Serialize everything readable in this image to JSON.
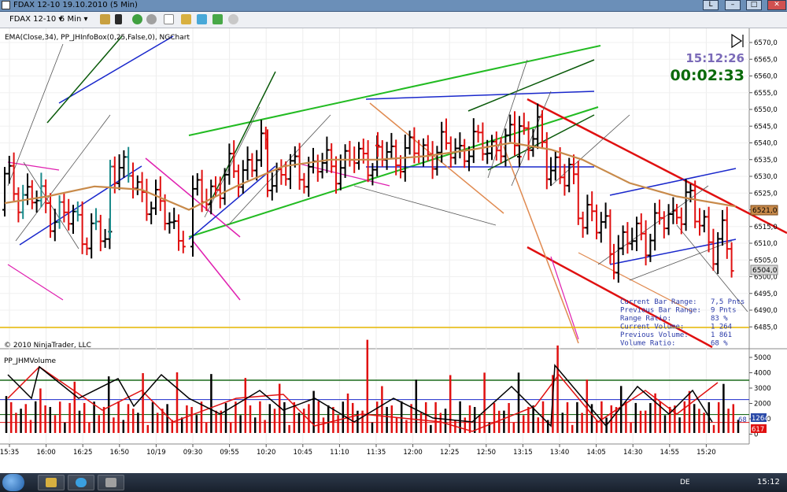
{
  "window": {
    "title": "FDAX 12-10  19.10.2010 (5 Min)",
    "button_l": "L",
    "button_min": "–",
    "button_max": "□",
    "button_close": "✕"
  },
  "toolbar": {
    "instrument": "FDAX 12-10",
    "interval": "5 Min",
    "dropdown_arrow": "▾"
  },
  "chart": {
    "indicators_label": "EMA(Close,34), PP_JHInfoBox(0,25,False,0), NGChart",
    "time_text": "15:12:26",
    "countdown_text": "00:02:33",
    "copyright": "© 2010 NinjaTrader, LLC",
    "volume_panel_label": "PP_JHMVolume",
    "price_axis_labels": [
      "6570,0",
      "6565,0",
      "6560,0",
      "6555,0",
      "6550,0",
      "6545,0",
      "6540,0",
      "6535,0",
      "6530,0",
      "6525,0",
      "6520,0",
      "6515,0",
      "6510,0",
      "6505,0",
      "6500,0",
      "6495,0",
      "6490,0",
      "6485,0"
    ],
    "last_price_tag": "6521,0",
    "secondary_price_tag": "6504,0",
    "volume_axis_labels": [
      "5000",
      "4000",
      "3000",
      "2000",
      "1000",
      "0"
    ],
    "volume_tag_current": "1264",
    "volume_tag_previous": "617",
    "volume_tag_small": "68",
    "time_axis_labels": [
      "15:35",
      "16:00",
      "16:25",
      "16:50",
      "10/19",
      "09:30",
      "09:55",
      "10:20",
      "10:45",
      "11:10",
      "11:35",
      "12:00",
      "12:25",
      "12:50",
      "13:15",
      "13:40",
      "14:05",
      "14:30",
      "14:55",
      "15:20"
    ],
    "infobox": [
      {
        "label": "Current Bar Range:",
        "value": "7,5 Pnts"
      },
      {
        "label": "Previous Bar Range:",
        "value": "9 Pnts"
      },
      {
        "label": "Range Ratio:",
        "value": "83 %"
      },
      {
        "label": "Current Volume:",
        "value": "1 264"
      },
      {
        "label": "Previous Volume:",
        "value": "1 861"
      },
      {
        "label": "Volume Ratio:",
        "value": "68 %"
      }
    ],
    "colors": {
      "up_bar": "#000000",
      "down_bar": "#e01010",
      "teal_bar": "#1a8a8a",
      "ema": "#c88a4a",
      "green_channel": "#22bb22",
      "dark_green": "#0a5a0a",
      "blue_line": "#1a28cc",
      "magenta": "#e020b0",
      "red_channel": "#e01010",
      "orange_line": "#e08a50",
      "time_color": "#7a6ab8",
      "countdown_color": "#0a6a0a",
      "vol_threshold": "#e8b800"
    }
  },
  "taskbar": {
    "language": "DE",
    "clock": "15:12"
  }
}
